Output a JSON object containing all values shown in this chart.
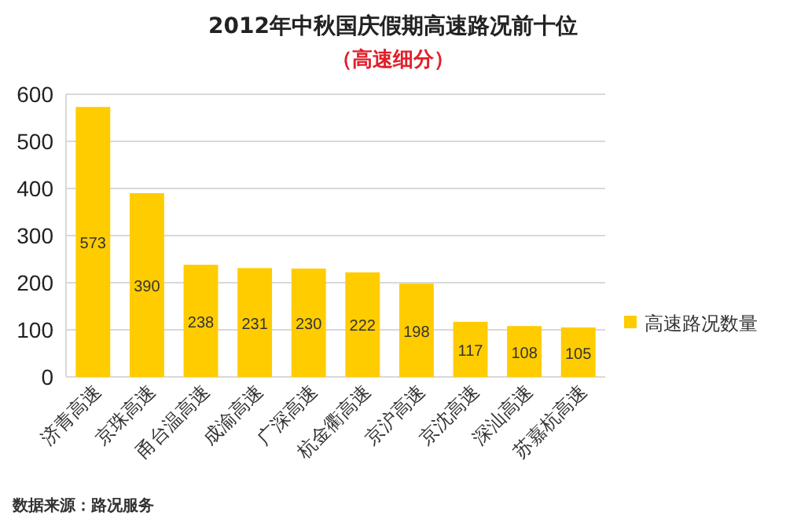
{
  "chart_data": {
    "type": "bar",
    "title": "2012年中秋国庆假期高速路况前十位",
    "subtitle": "（高速细分）",
    "categories": [
      "济青高速",
      "京珠高速",
      "甬台温高速",
      "成渝高速",
      "广深高速",
      "杭金衢高速",
      "京沪高速",
      "京沈高速",
      "深汕高速",
      "苏嘉杭高速"
    ],
    "series": [
      {
        "name": "高速路况数量",
        "color": "#ffcc00",
        "values": [
          573,
          390,
          238,
          231,
          230,
          222,
          198,
          117,
          108,
          105
        ]
      }
    ],
    "ylim": [
      0,
      600
    ],
    "yticks": [
      0,
      100,
      200,
      300,
      400,
      500,
      600
    ],
    "grid": "y",
    "legend": "right",
    "data_labels": true,
    "annotations": [
      "数据来源：路况服务"
    ]
  }
}
